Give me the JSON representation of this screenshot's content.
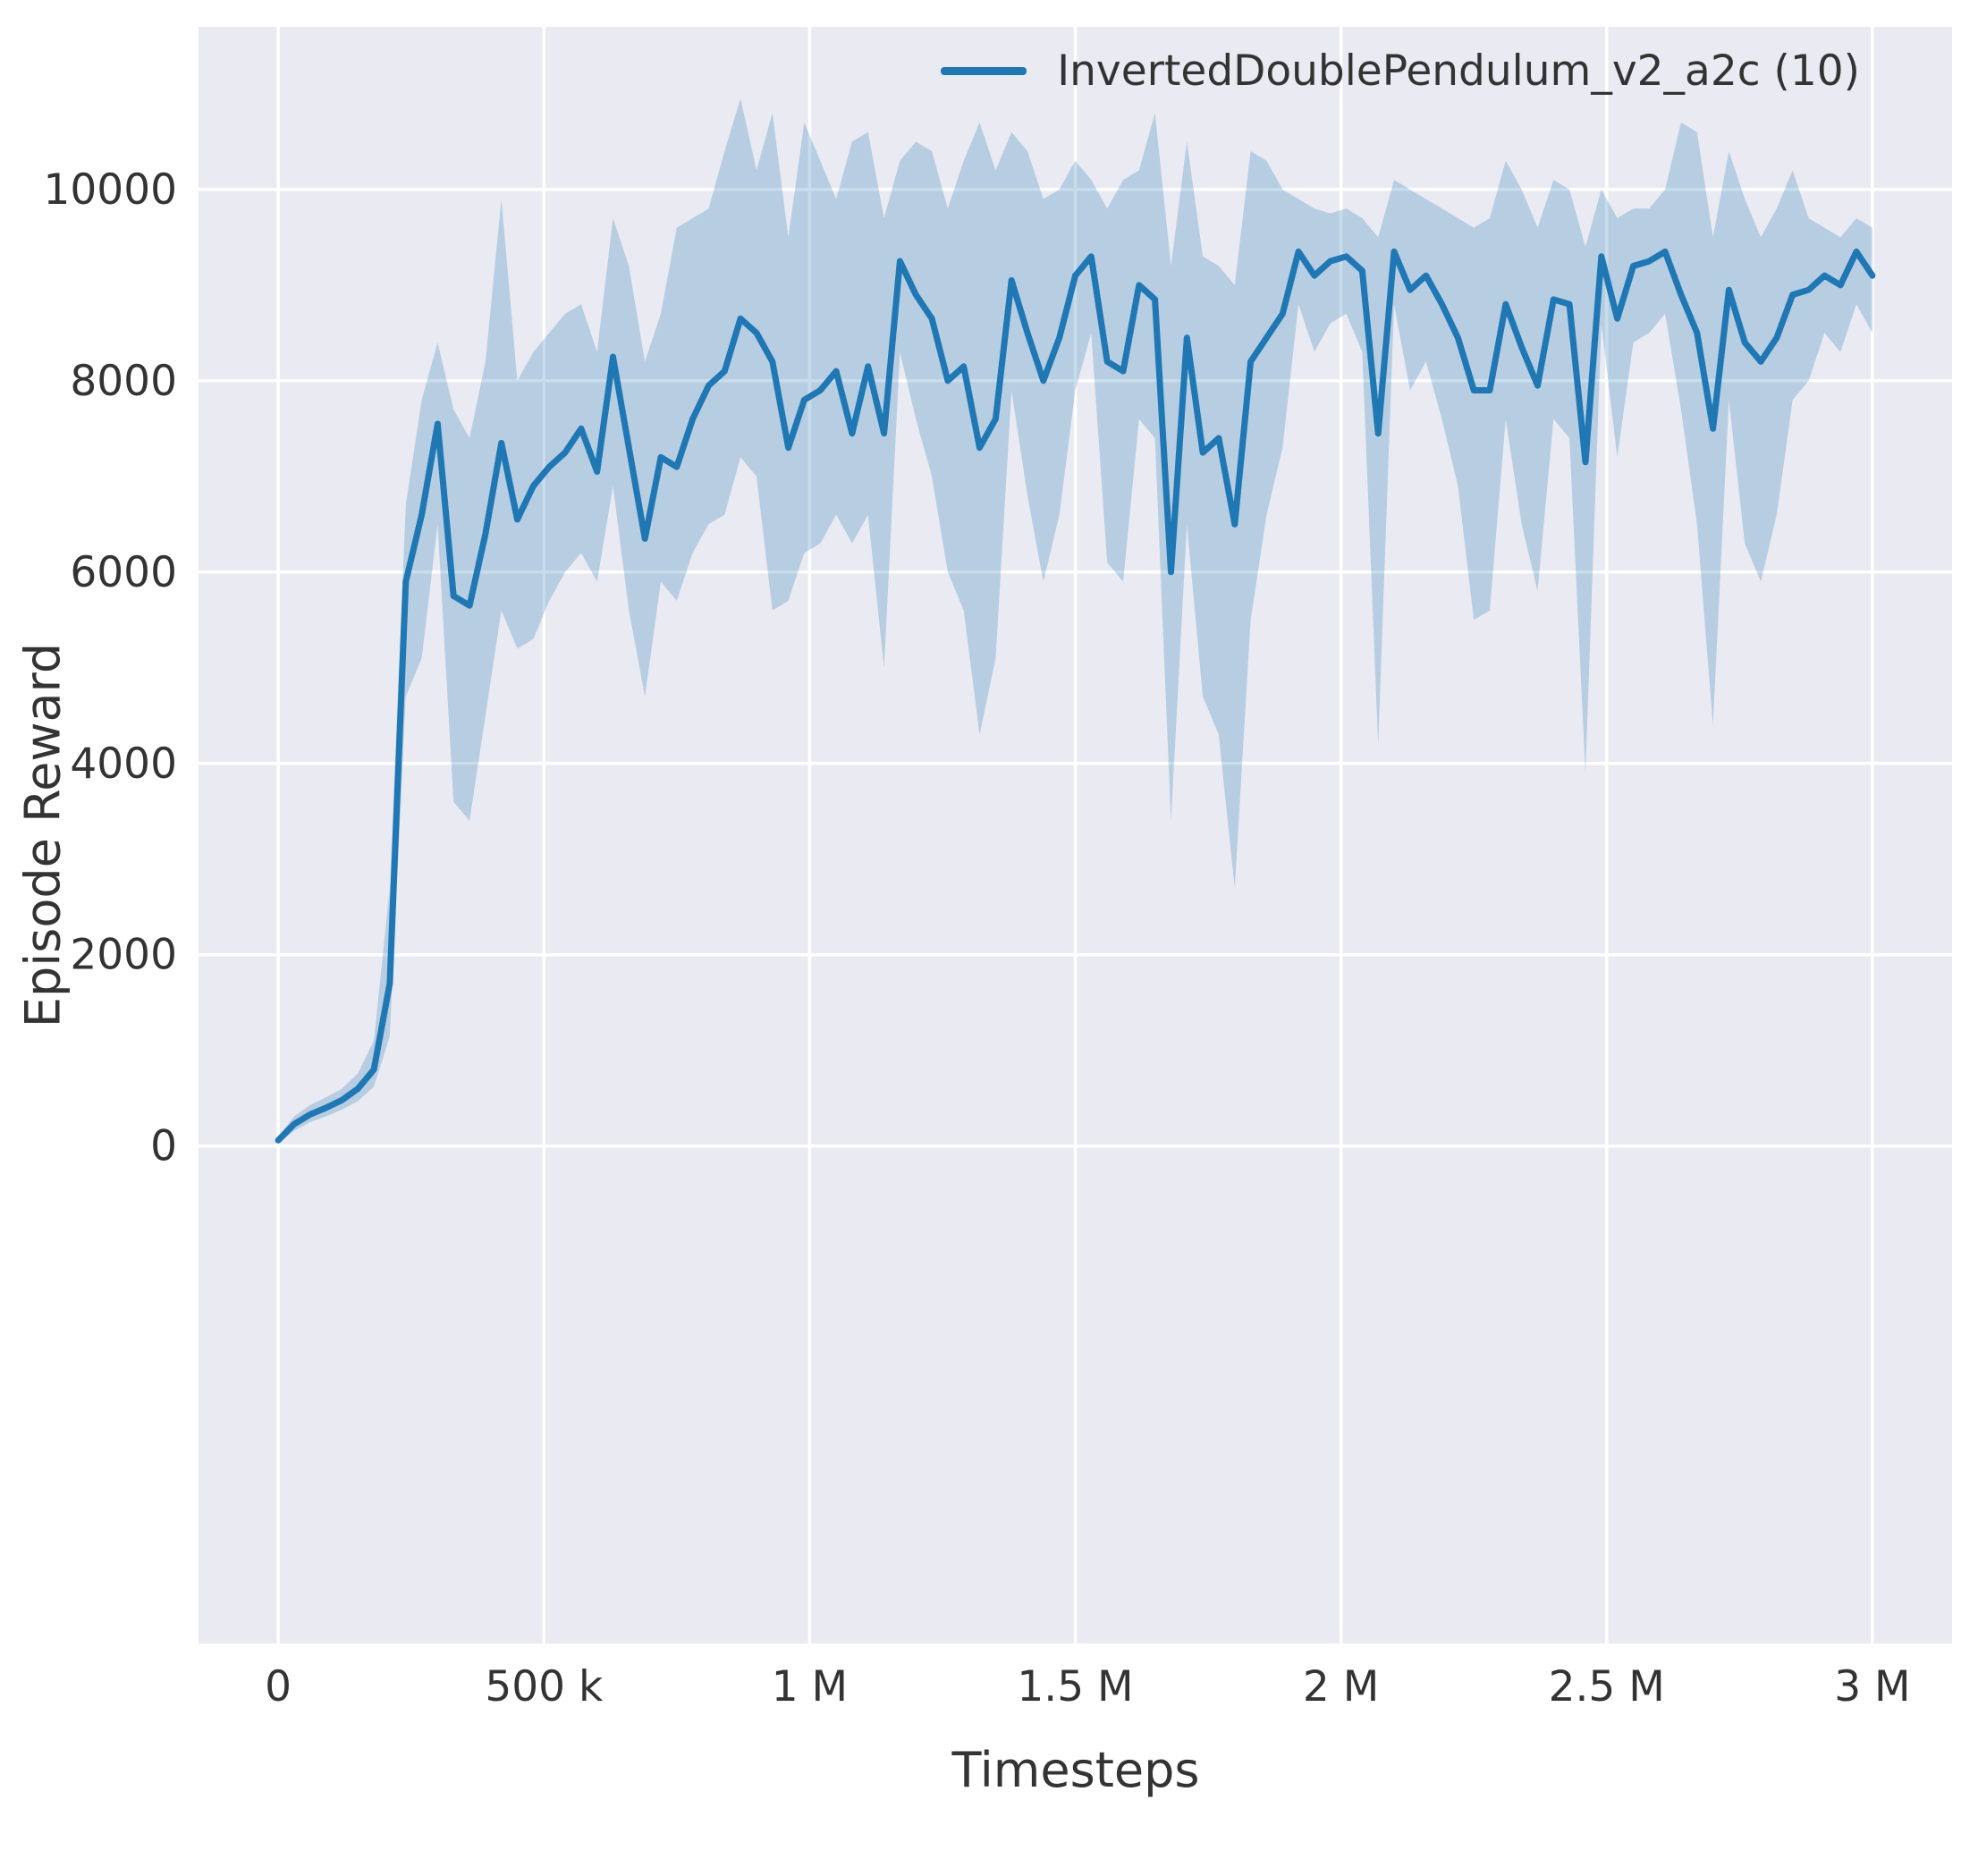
{
  "figure": {
    "background": "#ffffff",
    "plot_background": "#eaeaf2",
    "grid_color": "#ffffff",
    "text_color": "#333333"
  },
  "legend": {
    "label": "InvertedDoublePendulum_v2_a2c (10)",
    "line_color": "#1f77b4"
  },
  "chart_data": {
    "type": "line",
    "title": "",
    "xlabel": "Timesteps",
    "ylabel": "Episode Reward",
    "xlim": [
      -150000,
      3150000
    ],
    "ylim": [
      -5200,
      11700
    ],
    "grid": true,
    "legend_position": "upper right",
    "x_ticks": [
      {
        "value": 0,
        "label": "0"
      },
      {
        "value": 500000,
        "label": "500 k"
      },
      {
        "value": 1000000,
        "label": "1 M"
      },
      {
        "value": 1500000,
        "label": "1.5 M"
      },
      {
        "value": 2000000,
        "label": "2 M"
      },
      {
        "value": 2500000,
        "label": "2.5 M"
      },
      {
        "value": 3000000,
        "label": "3 M"
      }
    ],
    "y_ticks": [
      {
        "value": 0,
        "label": "0"
      },
      {
        "value": 2000,
        "label": "2000"
      },
      {
        "value": 4000,
        "label": "4000"
      },
      {
        "value": 6000,
        "label": "6000"
      },
      {
        "value": 8000,
        "label": "8000"
      },
      {
        "value": 10000,
        "label": "10000"
      }
    ],
    "series": [
      {
        "name": "InvertedDoublePendulum_v2_a2c (10)",
        "color": "#1f77b4",
        "band_color": "#1f77b4",
        "band_opacity": 0.25,
        "line_width": 7,
        "x": [
          0,
          30000,
          60000,
          90000,
          120000,
          150000,
          180000,
          210000,
          240000,
          270000,
          300000,
          330000,
          360000,
          390000,
          420000,
          450000,
          480000,
          510000,
          540000,
          570000,
          600000,
          630000,
          660000,
          690000,
          720000,
          750000,
          780000,
          810000,
          840000,
          870000,
          900000,
          930000,
          960000,
          990000,
          1020000,
          1050000,
          1080000,
          1110000,
          1140000,
          1170000,
          1200000,
          1230000,
          1260000,
          1290000,
          1320000,
          1350000,
          1380000,
          1410000,
          1440000,
          1470000,
          1500000,
          1530000,
          1560000,
          1590000,
          1620000,
          1650000,
          1680000,
          1710000,
          1740000,
          1770000,
          1800000,
          1830000,
          1860000,
          1890000,
          1920000,
          1950000,
          1980000,
          2010000,
          2040000,
          2070000,
          2100000,
          2130000,
          2160000,
          2190000,
          2220000,
          2250000,
          2280000,
          2310000,
          2340000,
          2370000,
          2400000,
          2430000,
          2460000,
          2490000,
          2520000,
          2550000,
          2580000,
          2610000,
          2640000,
          2670000,
          2700000,
          2730000,
          2760000,
          2790000,
          2820000,
          2850000,
          2880000,
          2910000,
          2940000,
          2970000,
          3000000
        ],
        "mean": [
          60,
          230,
          330,
          400,
          480,
          600,
          800,
          1700,
          5900,
          6600,
          7550,
          5750,
          5650,
          6400,
          7350,
          6550,
          6900,
          7100,
          7250,
          7500,
          7050,
          8250,
          7300,
          6350,
          7200,
          7100,
          7600,
          7950,
          8100,
          8650,
          8500,
          8200,
          7300,
          7800,
          7900,
          8100,
          7450,
          8150,
          7450,
          9250,
          8900,
          8650,
          8000,
          8150,
          7300,
          7600,
          9050,
          8500,
          8000,
          8450,
          9100,
          9300,
          8200,
          8100,
          9000,
          8850,
          6000,
          8450,
          7250,
          7400,
          6500,
          8200,
          8450,
          8700,
          9350,
          9100,
          9250,
          9300,
          9150,
          7450,
          9350,
          8950,
          9100,
          8800,
          8450,
          7900,
          7900,
          8800,
          8350,
          7950,
          8850,
          8800,
          7150,
          9300,
          8650,
          9200,
          9250,
          9350,
          8900,
          8500,
          7500,
          8950,
          8400,
          8200,
          8450,
          8900,
          8950,
          9100,
          9000,
          9350,
          9100
        ],
        "lower": [
          30,
          160,
          250,
          310,
          380,
          470,
          620,
          1150,
          4700,
          5100,
          6500,
          3600,
          3400,
          4500,
          5600,
          5200,
          5300,
          5700,
          6000,
          6200,
          5900,
          6900,
          5600,
          4700,
          5900,
          5700,
          6200,
          6500,
          6600,
          7200,
          7000,
          5600,
          5700,
          6200,
          6300,
          6600,
          6300,
          6600,
          5000,
          8300,
          7600,
          7000,
          6000,
          5600,
          4300,
          5100,
          7900,
          6800,
          5900,
          6600,
          7900,
          8500,
          6100,
          5900,
          7600,
          7400,
          3400,
          6500,
          4700,
          4300,
          2700,
          5500,
          6600,
          7300,
          8800,
          8300,
          8600,
          8700,
          8300,
          4200,
          8800,
          7900,
          8200,
          7600,
          6900,
          5500,
          5600,
          7600,
          6500,
          5800,
          7600,
          7400,
          3900,
          8600,
          7200,
          8400,
          8500,
          8700,
          7700,
          6500,
          4400,
          7800,
          6300,
          5900,
          6600,
          7800,
          8000,
          8500,
          8300,
          8800,
          8500
        ],
        "upper": [
          100,
          310,
          430,
          510,
          600,
          760,
          1100,
          2700,
          6700,
          7800,
          8400,
          7700,
          7400,
          8200,
          9900,
          8000,
          8300,
          8500,
          8700,
          8800,
          8300,
          9700,
          9200,
          8200,
          8700,
          9600,
          9700,
          9800,
          10400,
          10950,
          10200,
          10800,
          9500,
          10700,
          10300,
          9900,
          10500,
          10600,
          9700,
          10300,
          10500,
          10400,
          9800,
          10300,
          10700,
          10200,
          10600,
          10400,
          9900,
          10000,
          10300,
          10100,
          9800,
          10100,
          10200,
          10800,
          9200,
          10500,
          9300,
          9200,
          9000,
          10400,
          10300,
          10000,
          9900,
          9800,
          9750,
          9800,
          9700,
          9500,
          10100,
          10000,
          9900,
          9800,
          9700,
          9600,
          9700,
          10300,
          10000,
          9600,
          10100,
          10000,
          9400,
          10000,
          9700,
          9800,
          9800,
          10000,
          10700,
          10600,
          9500,
          10400,
          9900,
          9500,
          9800,
          10200,
          9700,
          9600,
          9500,
          9700,
          9600
        ]
      }
    ]
  }
}
